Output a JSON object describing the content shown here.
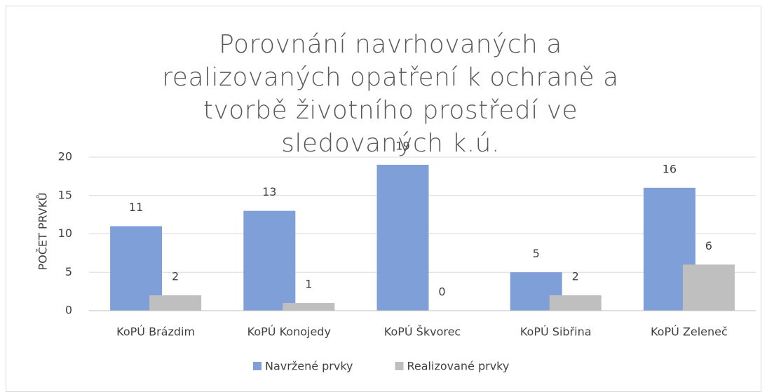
{
  "chart_data": {
    "type": "bar",
    "title": "Porovnání navrhovaných a realizovaných opatření k ochraně a tvorbě životního prostředí ve sledovaných k.ú.",
    "y_label": "POČET PRVKŮ",
    "categories": [
      "KoPÚ Brázdim",
      "KoPÚ Konojedy",
      "KoPÚ Škvorec",
      "KoPÚ Sibřina",
      "KoPÚ Zeleneč"
    ],
    "series": [
      {
        "name": "Navržené prvky",
        "color": "#7f9fd8",
        "values": [
          11,
          13,
          19,
          5,
          16
        ]
      },
      {
        "name": "Realizované prvky",
        "color": "#bfbfbf",
        "values": [
          2,
          1,
          0,
          2,
          6
        ]
      }
    ],
    "ylim": [
      0,
      20
    ],
    "yticks": [
      0,
      5,
      10,
      15,
      20
    ],
    "grid": true,
    "legend": "bottom"
  }
}
